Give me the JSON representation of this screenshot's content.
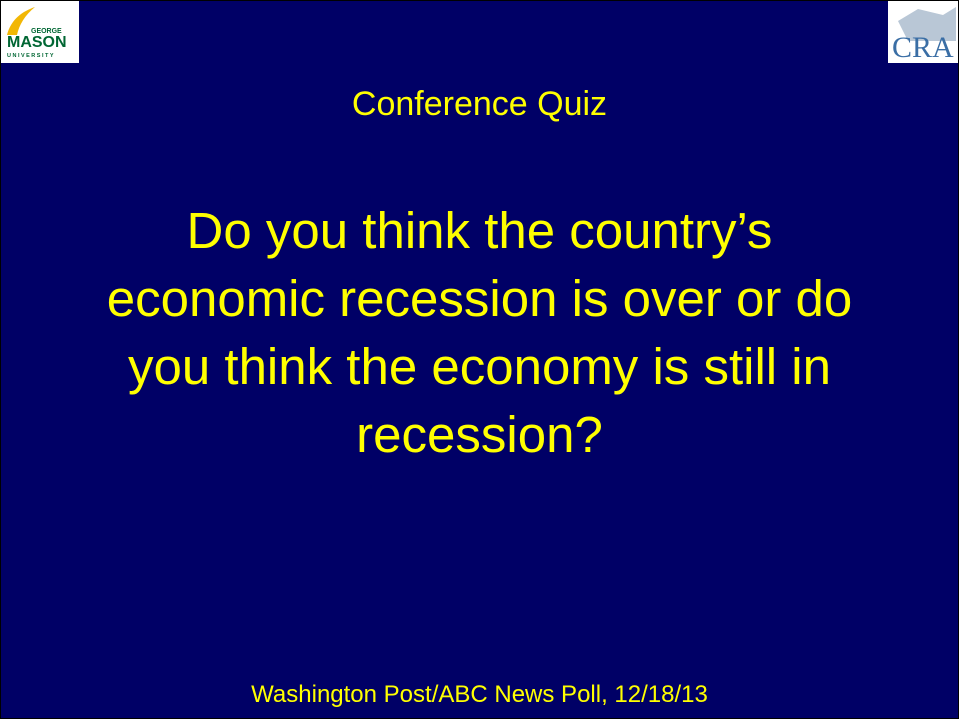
{
  "logos": {
    "left": {
      "top": "GEORGE",
      "main": "MASON",
      "sub": "UNIVERSITY"
    },
    "right": {
      "main": "CRA"
    }
  },
  "slide": {
    "title": "Conference Quiz",
    "question": [
      "Do you think the country’s",
      "economic recession is over or do",
      "you think the economy is still in",
      "recession?"
    ],
    "source": "Washington Post/ABC News Poll, 12/18/13"
  }
}
